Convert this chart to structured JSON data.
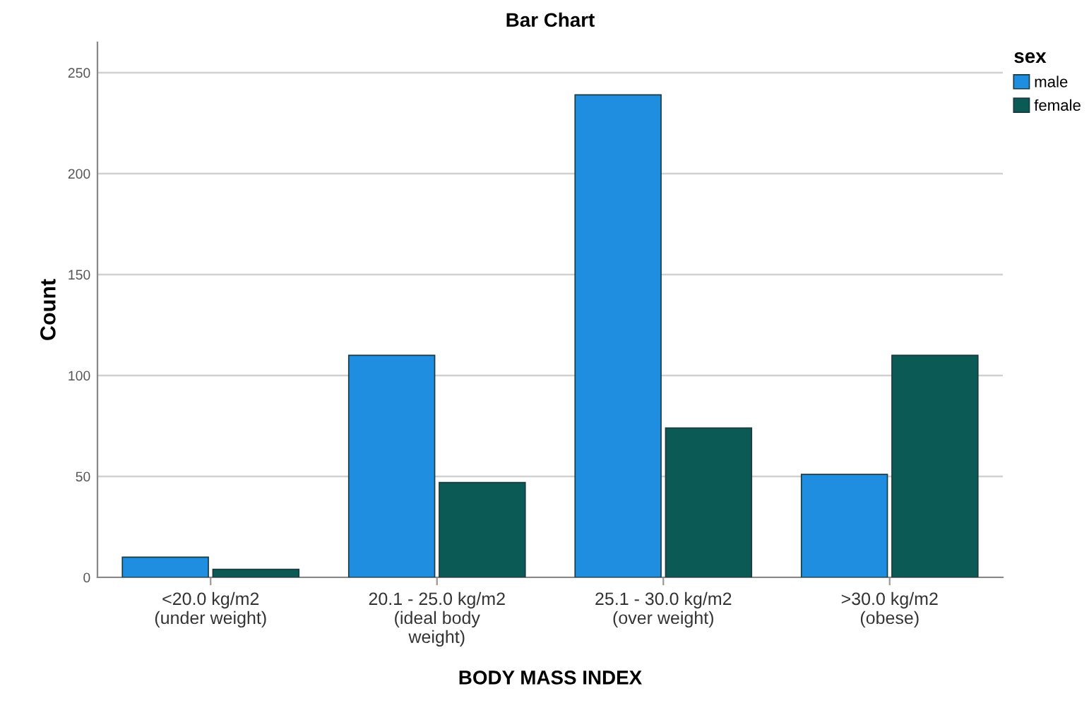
{
  "chart_data": {
    "type": "bar",
    "title": "Bar Chart",
    "xlabel": "BODY MASS INDEX",
    "ylabel": "Count",
    "legend_title": "sex",
    "categories": [
      "<20.0 kg/m2\n(under weight)",
      "20.1 - 25.0 kg/m2\n(ideal body\nweight)",
      "25.1 - 30.0 kg/m2\n(over weight)",
      ">30.0 kg/m2\n(obese)"
    ],
    "series": [
      {
        "name": "male",
        "color": "#1f8ee0",
        "values": [
          10,
          110,
          239,
          51
        ]
      },
      {
        "name": "female",
        "color": "#0b5a55",
        "values": [
          4,
          47,
          74,
          110
        ]
      }
    ],
    "ylim": [
      0,
      265
    ],
    "yticks": [
      0,
      50,
      100,
      150,
      200,
      250
    ],
    "grid": "y",
    "legend": "top right"
  }
}
